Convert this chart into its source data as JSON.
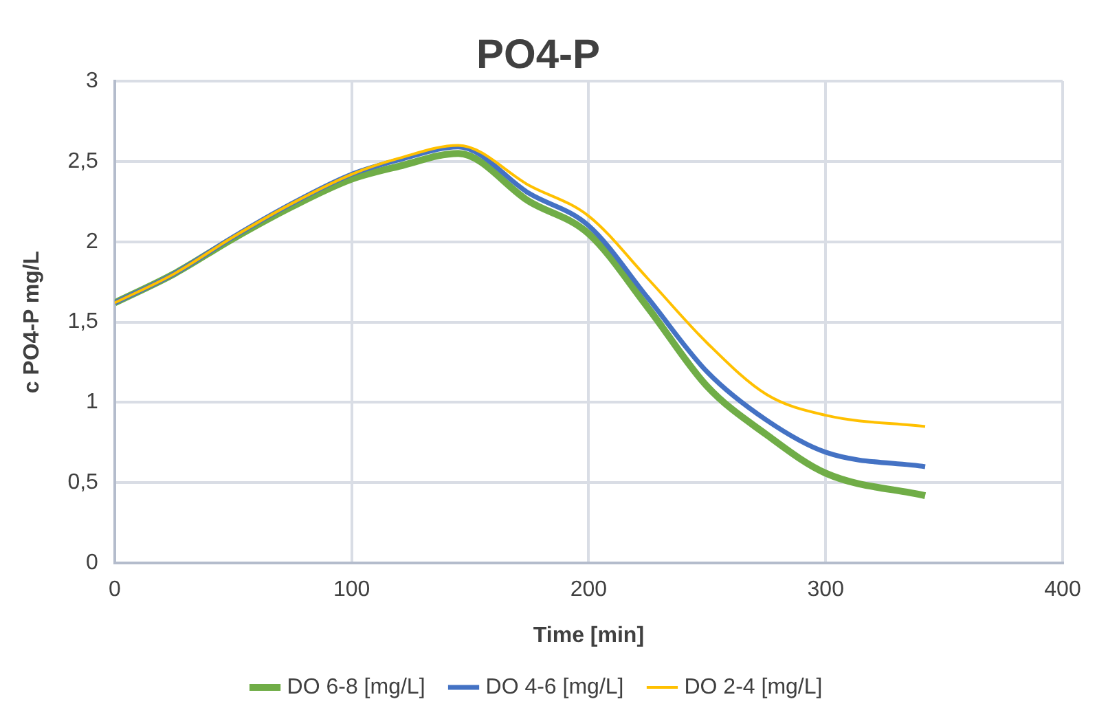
{
  "chart_data": {
    "type": "line",
    "title": "PO4-P",
    "xlabel": "Time [min]",
    "ylabel": "c PO4-P mg/L",
    "x": [
      0,
      25,
      50,
      75,
      100,
      120,
      145,
      175,
      200,
      225,
      250,
      275,
      300,
      342
    ],
    "series": [
      {
        "name": "DO 6-8 [mg/L]",
        "color": "#70ad47",
        "values": [
          1.62,
          1.8,
          2.02,
          2.22,
          2.39,
          2.47,
          2.55,
          2.25,
          2.05,
          1.59,
          1.1,
          0.8,
          0.56,
          0.42
        ]
      },
      {
        "name": "DO 4-6 [mg/L]",
        "color": "#4472c4",
        "values": [
          1.62,
          1.8,
          2.03,
          2.24,
          2.42,
          2.51,
          2.59,
          2.3,
          2.1,
          1.65,
          1.19,
          0.89,
          0.69,
          0.6
        ]
      },
      {
        "name": "DO 2-4 [mg/L]",
        "color": "#ffc000",
        "values": [
          1.62,
          1.8,
          2.03,
          2.24,
          2.42,
          2.52,
          2.6,
          2.35,
          2.16,
          1.77,
          1.37,
          1.05,
          0.92,
          0.85
        ]
      }
    ],
    "xlim": [
      0,
      400
    ],
    "xticks": [
      0,
      100,
      200,
      300,
      400
    ],
    "ylim": [
      0,
      3
    ],
    "yticks": [
      0,
      {
        "value": 0.5,
        "label": "0,5"
      },
      1,
      {
        "value": 1.5,
        "label": "1,5"
      },
      2,
      {
        "value": 2.5,
        "label": "2,5"
      },
      3
    ],
    "grid": true,
    "legend": "bottom",
    "marker": "none",
    "line_style": "solid"
  }
}
